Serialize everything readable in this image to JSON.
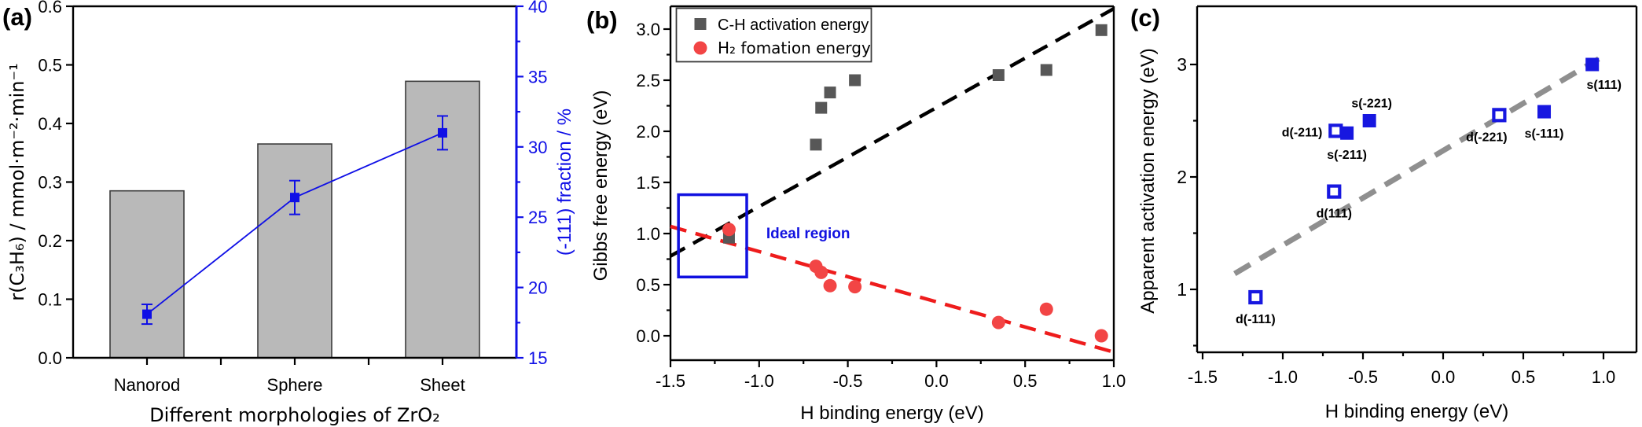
{
  "figure": {
    "background": "#ffffff",
    "panel_labels": [
      "(a)",
      "(b)",
      "(c)"
    ]
  },
  "chart_data": [
    {
      "panel": "a",
      "type": "bar",
      "categories": [
        "Nanorod",
        "Sphere",
        "Sheet"
      ],
      "bar_values": [
        0.285,
        0.365,
        0.472
      ],
      "line_series": {
        "name": "(-111) fraction",
        "values": [
          18.1,
          26.4,
          31.0
        ],
        "errors": [
          0.7,
          1.2,
          1.2
        ]
      },
      "xlabel": "Different morphologies of ZrO₂",
      "left_axis": {
        "label": "r(C₃H₆) / mmol·m⁻²·min⁻¹",
        "min": 0.0,
        "max": 0.6,
        "ticks": [
          "0.0",
          "0.1",
          "0.2",
          "0.3",
          "0.4",
          "0.5",
          "0.6"
        ]
      },
      "right_axis": {
        "label": "(-111) fraction / %",
        "min": 15,
        "max": 40,
        "ticks": [
          "15",
          "20",
          "25",
          "30",
          "35",
          "40"
        ]
      },
      "colors": {
        "bar_fill": "#b9b9b9",
        "bar_edge": "#3c3c3c",
        "line": "#0f0fe6"
      }
    },
    {
      "panel": "b",
      "type": "scatter",
      "xlabel": "H binding energy (eV)",
      "ylabel": "Gibbs free energy (eV)",
      "xlim": [
        -1.5,
        1.0
      ],
      "ylim": [
        -0.24,
        3.22
      ],
      "x_ticks": [
        "-1.5",
        "-1.0",
        "-0.5",
        "0.0",
        "0.5",
        "1.0"
      ],
      "y_ticks": [
        "0.0",
        "0.5",
        "1.0",
        "1.5",
        "2.0",
        "2.5",
        "3.0"
      ],
      "series": [
        {
          "name": "C-H activation energy",
          "marker": "square",
          "color": "#575757",
          "x": [
            -1.17,
            -0.68,
            -0.65,
            -0.6,
            -0.46,
            0.35,
            0.62,
            0.93
          ],
          "y": [
            0.96,
            1.87,
            2.23,
            2.38,
            2.5,
            2.55,
            2.6,
            2.99
          ]
        },
        {
          "name": "H₂ fomation energy",
          "marker": "circle",
          "color": "#f24545",
          "x": [
            -1.17,
            -0.68,
            -0.65,
            -0.6,
            -0.46,
            0.35,
            0.62,
            0.93
          ],
          "y": [
            1.04,
            0.68,
            0.62,
            0.49,
            0.48,
            0.13,
            0.26,
            0.0
          ]
        }
      ],
      "trendlines": [
        {
          "series": "C-H activation energy",
          "color": "#000000",
          "from": [
            -1.5,
            0.78
          ],
          "to": [
            1.0,
            3.2
          ]
        },
        {
          "series": "H₂ fomation energy",
          "color": "#ee1c1c",
          "from": [
            -1.5,
            1.07
          ],
          "to": [
            1.0,
            -0.16
          ]
        }
      ],
      "ideal_region": {
        "label": "Ideal region",
        "x_range": [
          -1.455,
          -1.07
        ],
        "y_range": [
          0.575,
          1.38
        ],
        "color": "#1111e0"
      },
      "legend_position": "top-left"
    },
    {
      "panel": "c",
      "type": "scatter",
      "xlabel": "H binding energy (eV)",
      "ylabel": "Apparent activation energy (eV)",
      "xlim": [
        -1.55,
        1.2
      ],
      "ylim": [
        0.44,
        3.52
      ],
      "x_ticks": [
        "-1.5",
        "-1.0",
        "-0.5",
        "0.0",
        "0.5",
        "1.0"
      ],
      "y_ticks": [
        "1",
        "2",
        "3"
      ],
      "marker_color": "#1717e0",
      "points": [
        {
          "label": "d(-111)",
          "x": -1.17,
          "y": 0.93,
          "filled": false,
          "label_pos": "below"
        },
        {
          "label": "d(111)",
          "x": -0.68,
          "y": 1.87,
          "filled": false,
          "label_pos": "below"
        },
        {
          "label": "d(-211)",
          "x": -0.67,
          "y": 2.41,
          "filled": false,
          "label_pos": "left"
        },
        {
          "label": "s(-211)",
          "x": -0.6,
          "y": 2.39,
          "filled": true,
          "label_pos": "below"
        },
        {
          "label": "s(-221)",
          "x": -0.46,
          "y": 2.5,
          "filled": true,
          "label_pos": "above"
        },
        {
          "label": "d(-221)",
          "x": 0.35,
          "y": 2.55,
          "filled": false,
          "label_pos": "below-left"
        },
        {
          "label": "s(-111)",
          "x": 0.63,
          "y": 2.58,
          "filled": true,
          "label_pos": "below"
        },
        {
          "label": "s(111)",
          "x": 0.93,
          "y": 3.0,
          "filled": true,
          "label_pos": "below-right"
        }
      ],
      "trendline": {
        "color": "#8f8f8f",
        "from": [
          -1.3,
          1.14
        ],
        "to": [
          0.97,
          3.05
        ]
      }
    }
  ]
}
